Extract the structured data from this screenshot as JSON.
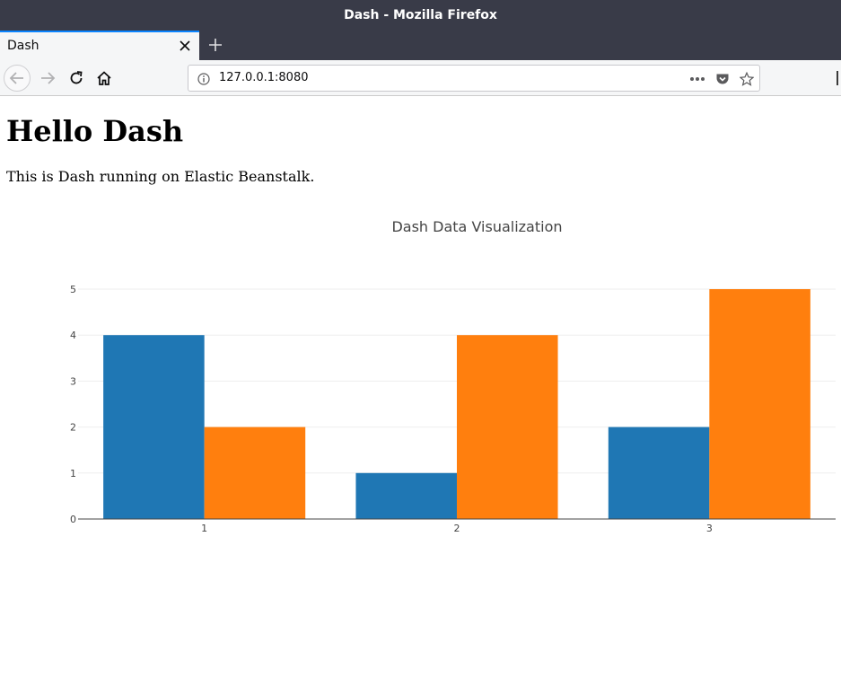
{
  "window": {
    "title": "Dash - Mozilla Firefox"
  },
  "tabs": [
    {
      "label": "Dash"
    }
  ],
  "navbar": {
    "url": "127.0.0.1:8080"
  },
  "page": {
    "heading": "Hello Dash",
    "intro": "This is Dash running on Elastic Beanstalk."
  },
  "colors": {
    "series1": "#1f77b4",
    "series2": "#ff7f0e",
    "titlebar": "#393b48",
    "accent": "#0a84ff"
  },
  "icons": {
    "back": "arrow-left-icon",
    "forward": "arrow-right-icon",
    "reload": "reload-icon",
    "home": "home-icon",
    "info": "info-icon",
    "more": "more-icon",
    "pocket": "pocket-icon",
    "bookmark": "star-icon",
    "close": "close-icon",
    "newtab": "plus-icon"
  },
  "chart_data": {
    "type": "bar",
    "title": "Dash Data Visualization",
    "xlabel": "",
    "ylabel": "",
    "categories": [
      "1",
      "2",
      "3"
    ],
    "series": [
      {
        "values": [
          4,
          1,
          2
        ],
        "color": "#1f77b4"
      },
      {
        "values": [
          2,
          4,
          5
        ],
        "color": "#ff7f0e"
      }
    ],
    "ylim": [
      0,
      5
    ],
    "yticks": [
      0,
      1,
      2,
      3,
      4,
      5
    ],
    "grid": true,
    "legend": "none"
  }
}
